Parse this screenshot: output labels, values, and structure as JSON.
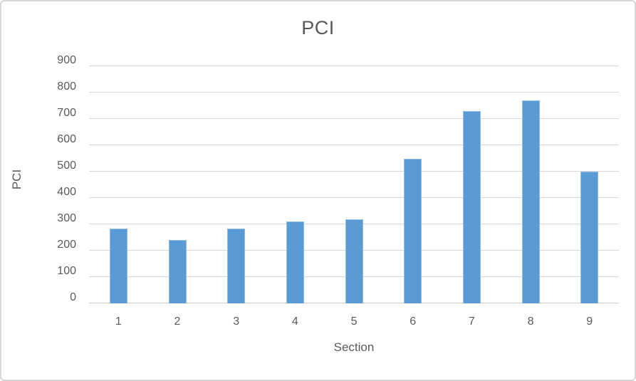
{
  "chart_data": {
    "type": "bar",
    "title": "PCI",
    "xlabel": "Section",
    "ylabel": "PCI",
    "categories": [
      "1",
      "2",
      "3",
      "4",
      "5",
      "6",
      "7",
      "8",
      "9"
    ],
    "values": [
      285,
      240,
      285,
      310,
      320,
      550,
      730,
      770,
      500
    ],
    "ylim": [
      0,
      900
    ],
    "yticks": [
      0,
      100,
      200,
      300,
      400,
      500,
      600,
      700,
      800,
      900
    ],
    "grid": "horizontal",
    "legend_position": "none",
    "colors": {
      "bar_fill": "#5b9bd5",
      "bar_border": "#8ebbe3",
      "gridline": "#d9d9d9",
      "text": "#595959",
      "frame_border": "#d7d7d7",
      "background": "#ffffff"
    }
  }
}
